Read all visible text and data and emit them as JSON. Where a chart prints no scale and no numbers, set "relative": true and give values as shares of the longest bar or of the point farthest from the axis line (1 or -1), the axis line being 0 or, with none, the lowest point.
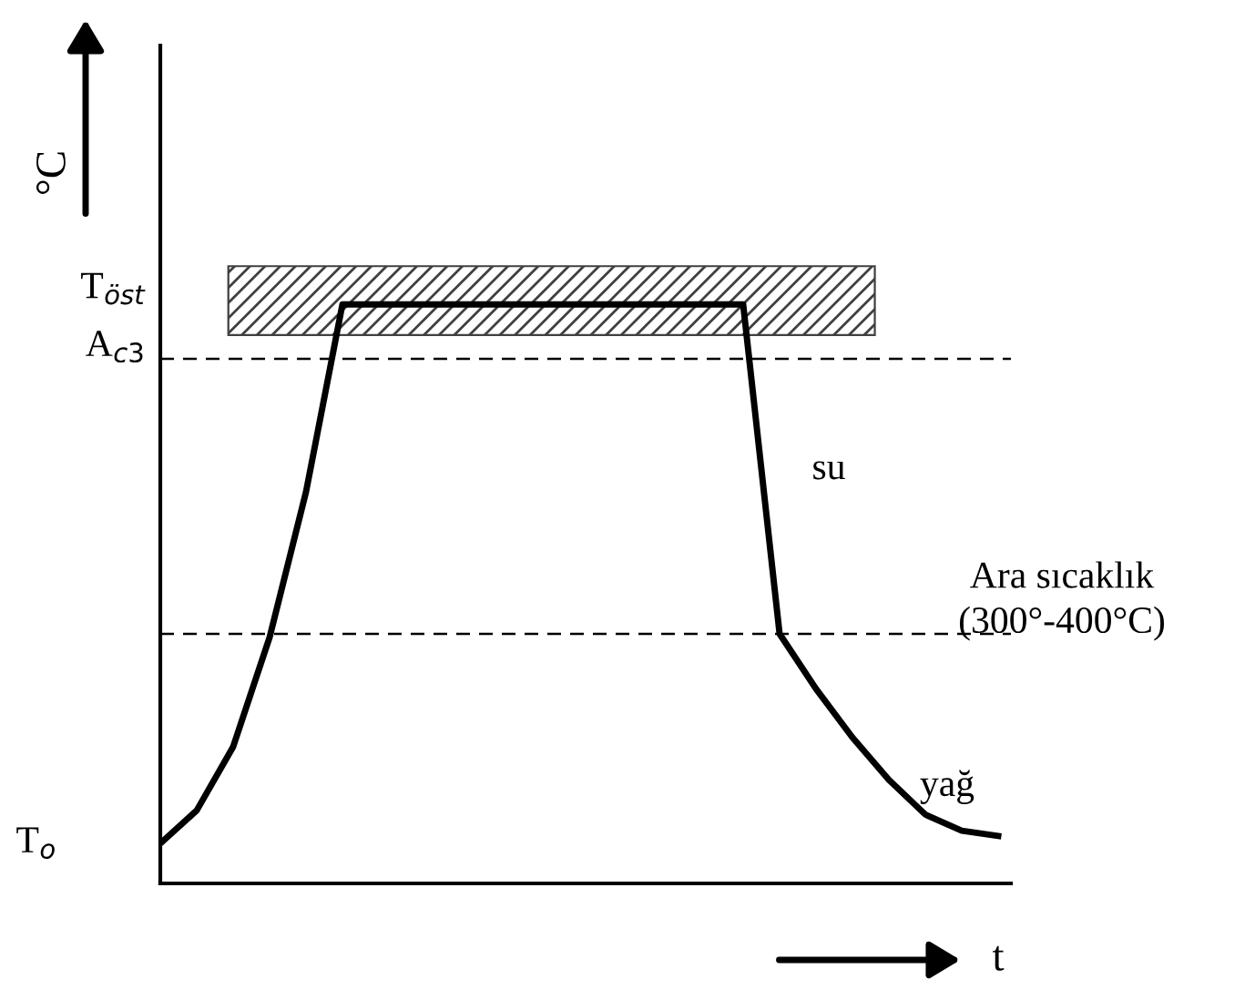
{
  "chart_data": {
    "type": "line",
    "relative": true,
    "xlabel": "t",
    "ylabel": "°C",
    "categories": [
      null,
      null,
      null,
      null,
      null,
      null,
      null,
      null,
      null,
      null,
      null,
      null,
      null,
      null,
      null,
      null,
      null,
      null,
      null,
      null,
      null,
      null,
      null,
      null
    ],
    "series": [
      {
        "color": "#000000",
        "values": [
          0.069,
          0.126,
          0.236,
          0.425,
          0.676,
          1,
          1,
          1,
          1,
          1,
          1,
          1,
          1,
          1,
          1,
          1,
          1,
          0.431,
          0.336,
          0.252,
          0.179,
          0.119,
          0.091,
          0.082
        ]
      }
    ],
    "ref_lines": [
      {
        "axis": "y",
        "value": 0.906,
        "label": "A$_{c3}$",
        "line_style": "dashed",
        "color": "#000000"
      },
      {
        "axis": "y",
        "value": 0.431,
        "line_style": "dashed",
        "color": "#000000"
      }
    ],
    "bands": [
      {
        "axis": "y",
        "from": 0.947,
        "to": 1.066,
        "label": "T$_{öst}$",
        "color": "#404040"
      }
    ],
    "annotations": [
      "T$_{o}$",
      "su",
      "yağ",
      "Ara sıcaklık\n(300°-400°C)"
    ],
    "marker": "none",
    "line_style": "solid"
  }
}
